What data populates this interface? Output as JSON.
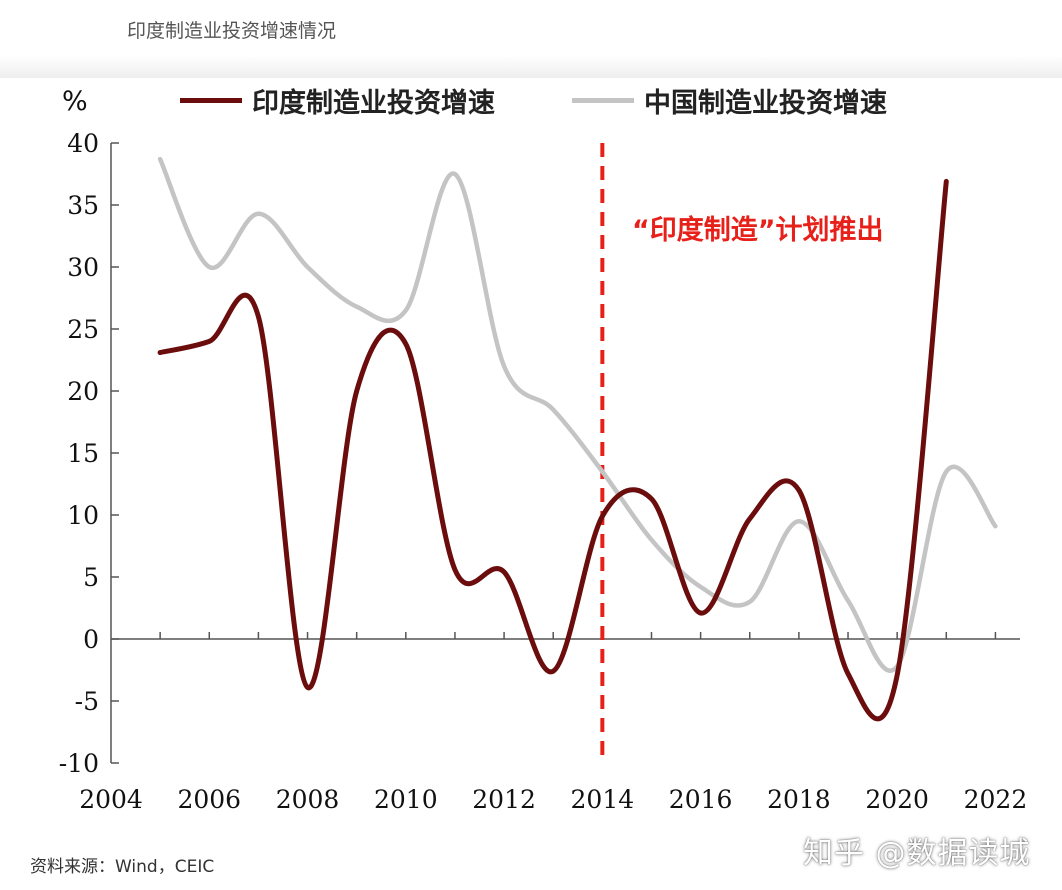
{
  "caption_top": "印度制造业投资增速情况",
  "source": "资料来源：Wind，CEIC",
  "watermark": "知乎 @数据读城",
  "colors": {
    "india": "#6b0d0d",
    "china": "#c4c4c4",
    "annotation": "#e8201a"
  },
  "chart_data": {
    "type": "line",
    "unit": "%",
    "x": [
      2005,
      2006,
      2007,
      2008,
      2009,
      2010,
      2011,
      2012,
      2013,
      2014,
      2015,
      2016,
      2017,
      2018,
      2019,
      2020,
      2021,
      2022
    ],
    "xticks": [
      2004,
      2006,
      2008,
      2010,
      2012,
      2014,
      2016,
      2018,
      2020,
      2022
    ],
    "xlim": [
      2004,
      2022.5
    ],
    "yticks": [
      40,
      35,
      30,
      25,
      20,
      15,
      10,
      5,
      0,
      -5,
      -10
    ],
    "ytick_labels": [
      "40",
      "35",
      "30",
      "25",
      "20",
      "15",
      "10",
      "5",
      "0",
      "-5",
      "-10"
    ],
    "ylim": [
      -10,
      40
    ],
    "series": [
      {
        "name": "印度制造业投资增速",
        "color": "#6b0d0d",
        "values": [
          23.1,
          24.0,
          26.0,
          -3.9,
          20.0,
          23.8,
          5.6,
          5.4,
          -2.6,
          9.9,
          11.3,
          2.1,
          9.7,
          12.0,
          -2.8,
          -2.9,
          36.9,
          null
        ]
      },
      {
        "name": "中国制造业投资增速",
        "color": "#c4c4c4",
        "values": [
          38.7,
          30.0,
          34.3,
          30.0,
          26.8,
          26.5,
          37.5,
          22.0,
          18.5,
          13.5,
          8.0,
          4.2,
          3.0,
          9.5,
          3.1,
          -2.2,
          13.5,
          9.1
        ]
      }
    ],
    "annotation": {
      "text": "“印度制造”计划推出",
      "x": 2014,
      "style": "dashed-vertical-line"
    },
    "legend_position": "top",
    "grid": false
  }
}
